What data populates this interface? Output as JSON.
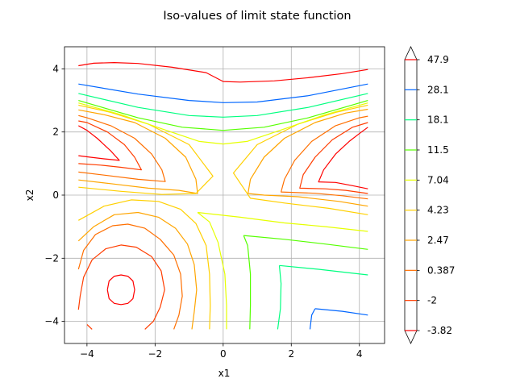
{
  "chart_data": {
    "type": "contour",
    "title": "Iso-values of limit state function",
    "xlabel": "x1",
    "ylabel": "x2",
    "xlim": [
      -4.66,
      4.74
    ],
    "ylim": [
      -4.7,
      4.7
    ],
    "xticks": [
      -4,
      -2,
      0,
      2,
      4
    ],
    "yticks": [
      -4,
      -2,
      0,
      2,
      4
    ],
    "xtick_labels": [
      "−4",
      "−2",
      "0",
      "2",
      "4"
    ],
    "ytick_labels": [
      "−4",
      "−2",
      "0",
      "2",
      "4"
    ],
    "grid": true,
    "colorbar": {
      "extend": "both",
      "levels": [
        {
          "label": "-3.82",
          "color": "#ff0000"
        },
        {
          "label": "-2",
          "color": "#ff3d00"
        },
        {
          "label": "0.387",
          "color": "#ff6f00"
        },
        {
          "label": "2.47",
          "color": "#ffa500"
        },
        {
          "label": "4.23",
          "color": "#ffd000"
        },
        {
          "label": "7.04",
          "color": "#e6ff00"
        },
        {
          "label": "11.5",
          "color": "#55ff00"
        },
        {
          "label": "18.1",
          "color": "#00ff80"
        },
        {
          "label": "28.1",
          "color": "#0066ff"
        },
        {
          "label": "47.9",
          "color": "#ff0000"
        }
      ]
    },
    "contours": [
      {
        "level": "-3.82",
        "color": "#ff0000",
        "paths": [
          [
            [
              -3.4,
              -3.0
            ],
            [
              -3.35,
              -2.72
            ],
            [
              -3.2,
              -2.57
            ],
            [
              -3.0,
              -2.53
            ],
            [
              -2.8,
              -2.57
            ],
            [
              -2.65,
              -2.72
            ],
            [
              -2.6,
              -3.0
            ],
            [
              -2.65,
              -3.28
            ],
            [
              -2.8,
              -3.43
            ],
            [
              -3.0,
              -3.47
            ],
            [
              -3.2,
              -3.43
            ],
            [
              -3.35,
              -3.28
            ],
            [
              -3.4,
              -3.0
            ]
          ],
          [
            [
              -4.25,
              1.25
            ],
            [
              -3.9,
              1.2
            ],
            [
              -3.5,
              1.15
            ],
            [
              -3.05,
              1.1
            ],
            [
              -3.3,
              1.4
            ],
            [
              -3.7,
              1.8
            ],
            [
              -4.0,
              2.05
            ],
            [
              -4.25,
              2.2
            ]
          ],
          [
            [
              4.25,
              0.2
            ],
            [
              3.8,
              0.3
            ],
            [
              3.3,
              0.4
            ],
            [
              2.8,
              0.42
            ],
            [
              2.95,
              0.8
            ],
            [
              3.3,
              1.3
            ],
            [
              3.7,
              1.7
            ],
            [
              4.0,
              1.95
            ],
            [
              4.25,
              2.15
            ]
          ],
          [
            [
              -4.25,
              4.1
            ],
            [
              -3.8,
              4.18
            ],
            [
              -3.2,
              4.2
            ],
            [
              -2.5,
              4.17
            ],
            [
              -1.5,
              4.05
            ],
            [
              -0.5,
              3.88
            ],
            [
              0.0,
              3.6
            ],
            [
              0.5,
              3.58
            ],
            [
              1.5,
              3.62
            ],
            [
              2.5,
              3.72
            ],
            [
              3.5,
              3.85
            ],
            [
              4.25,
              3.98
            ]
          ]
        ]
      },
      {
        "level": "-2",
        "color": "#ff3d00",
        "paths": [
          [
            [
              -4.25,
              -3.63
            ],
            [
              -4.2,
              -3.2
            ],
            [
              -4.1,
              -2.6
            ],
            [
              -3.85,
              -2.05
            ],
            [
              -3.45,
              -1.7
            ],
            [
              -3.0,
              -1.58
            ],
            [
              -2.55,
              -1.65
            ],
            [
              -2.1,
              -1.95
            ],
            [
              -1.82,
              -2.4
            ],
            [
              -1.72,
              -3.0
            ],
            [
              -1.85,
              -3.55
            ],
            [
              -2.05,
              -4.0
            ],
            [
              -2.3,
              -4.25
            ]
          ],
          [
            [
              -4.0,
              -4.1
            ],
            [
              -3.85,
              -4.25
            ]
          ],
          [
            [
              -4.25,
              1.0
            ],
            [
              -3.6,
              0.95
            ],
            [
              -3.0,
              0.88
            ],
            [
              -2.4,
              0.8
            ],
            [
              -2.6,
              1.2
            ],
            [
              -2.9,
              1.6
            ],
            [
              -3.4,
              2.0
            ],
            [
              -4.0,
              2.3
            ],
            [
              -4.25,
              2.35
            ]
          ],
          [
            [
              4.25,
              0.05
            ],
            [
              3.6,
              0.15
            ],
            [
              3.0,
              0.2
            ],
            [
              2.25,
              0.22
            ],
            [
              2.35,
              0.65
            ],
            [
              2.7,
              1.2
            ],
            [
              3.2,
              1.75
            ],
            [
              3.8,
              2.15
            ],
            [
              4.25,
              2.3
            ]
          ]
        ]
      },
      {
        "level": "0.387",
        "color": "#ff6f00",
        "paths": [
          [
            [
              -4.25,
              -2.35
            ],
            [
              -4.1,
              -1.75
            ],
            [
              -3.75,
              -1.25
            ],
            [
              -3.25,
              -0.97
            ],
            [
              -2.8,
              -0.92
            ],
            [
              -2.3,
              -1.05
            ],
            [
              -1.85,
              -1.4
            ],
            [
              -1.45,
              -1.9
            ],
            [
              -1.25,
              -2.5
            ],
            [
              -1.2,
              -3.2
            ],
            [
              -1.3,
              -3.8
            ],
            [
              -1.45,
              -4.25
            ]
          ],
          [
            [
              -4.25,
              0.73
            ],
            [
              -3.4,
              0.62
            ],
            [
              -2.5,
              0.5
            ],
            [
              -1.7,
              0.43
            ],
            [
              -1.8,
              0.8
            ],
            [
              -2.1,
              1.3
            ],
            [
              -2.6,
              1.8
            ],
            [
              -3.3,
              2.2
            ],
            [
              -4.0,
              2.45
            ],
            [
              -4.25,
              2.52
            ]
          ],
          [
            [
              4.25,
              -0.12
            ],
            [
              3.5,
              -0.02
            ],
            [
              2.7,
              0.06
            ],
            [
              1.7,
              0.1
            ],
            [
              1.8,
              0.5
            ],
            [
              2.1,
              1.1
            ],
            [
              2.6,
              1.7
            ],
            [
              3.3,
              2.2
            ],
            [
              4.0,
              2.45
            ],
            [
              4.25,
              2.5
            ]
          ]
        ]
      },
      {
        "level": "2.47",
        "color": "#ffa500",
        "paths": [
          [
            [
              -4.25,
              -1.45
            ],
            [
              -3.8,
              -1.0
            ],
            [
              -3.2,
              -0.62
            ],
            [
              -2.5,
              -0.55
            ],
            [
              -1.9,
              -0.7
            ],
            [
              -1.4,
              -1.05
            ],
            [
              -1.05,
              -1.55
            ],
            [
              -0.85,
              -2.2
            ],
            [
              -0.78,
              -3.0
            ],
            [
              -0.85,
              -3.7
            ],
            [
              -0.92,
              -4.25
            ]
          ],
          [
            [
              -4.25,
              0.48
            ],
            [
              -3.2,
              0.35
            ],
            [
              -2.2,
              0.22
            ],
            [
              -1.3,
              0.15
            ],
            [
              -0.75,
              0.05
            ],
            [
              -0.8,
              0.5
            ],
            [
              -1.1,
              1.2
            ],
            [
              -1.7,
              1.8
            ],
            [
              -2.6,
              2.3
            ],
            [
              -3.5,
              2.55
            ],
            [
              -4.25,
              2.7
            ]
          ],
          [
            [
              4.25,
              -0.35
            ],
            [
              3.4,
              -0.2
            ],
            [
              2.2,
              -0.05
            ],
            [
              1.2,
              0.0
            ],
            [
              0.73,
              0.05
            ],
            [
              0.8,
              0.5
            ],
            [
              1.2,
              1.2
            ],
            [
              1.8,
              1.8
            ],
            [
              2.7,
              2.3
            ],
            [
              3.6,
              2.6
            ],
            [
              4.25,
              2.72
            ]
          ]
        ]
      },
      {
        "level": "4.23",
        "color": "#ffd000",
        "paths": [
          [
            [
              -4.25,
              -0.8
            ],
            [
              -3.5,
              -0.35
            ],
            [
              -2.7,
              -0.15
            ],
            [
              -1.9,
              -0.2
            ],
            [
              -1.25,
              -0.45
            ],
            [
              -0.8,
              -0.9
            ],
            [
              -0.5,
              -1.6
            ],
            [
              -0.4,
              -2.5
            ],
            [
              -0.38,
              -3.5
            ],
            [
              -0.4,
              -4.25
            ]
          ],
          [
            [
              -4.25,
              0.25
            ],
            [
              -3.0,
              0.12
            ],
            [
              -1.8,
              0.02
            ],
            [
              -0.8,
              0.05
            ],
            [
              -0.3,
              0.6
            ],
            [
              -1.0,
              1.6
            ],
            [
              -2.2,
              2.25
            ],
            [
              -3.3,
              2.62
            ],
            [
              -4.25,
              2.85
            ]
          ],
          [
            [
              4.25,
              -0.62
            ],
            [
              3.1,
              -0.42
            ],
            [
              1.8,
              -0.25
            ],
            [
              0.8,
              -0.1
            ],
            [
              0.3,
              0.7
            ],
            [
              1.0,
              1.6
            ],
            [
              2.2,
              2.25
            ],
            [
              3.3,
              2.62
            ],
            [
              4.25,
              2.85
            ]
          ]
        ]
      },
      {
        "level": "7.04",
        "color": "#e6ff00",
        "paths": [
          [
            [
              -4.25,
              2.92
            ],
            [
              -3.0,
              2.55
            ],
            [
              -1.8,
              2.1
            ],
            [
              -0.7,
              1.7
            ],
            [
              0.0,
              1.62
            ],
            [
              0.7,
              1.7
            ],
            [
              1.8,
              2.1
            ],
            [
              3.0,
              2.55
            ],
            [
              4.25,
              2.92
            ]
          ],
          [
            [
              -0.75,
              -0.55
            ],
            [
              0.5,
              -0.7
            ],
            [
              1.8,
              -0.88
            ],
            [
              3.0,
              -1.0
            ],
            [
              4.25,
              -1.15
            ]
          ],
          [
            [
              -0.75,
              -0.55
            ],
            [
              -0.4,
              -0.85
            ],
            [
              -0.15,
              -1.5
            ],
            [
              0.05,
              -2.5
            ],
            [
              0.1,
              -3.5
            ],
            [
              0.1,
              -4.25
            ]
          ]
        ]
      },
      {
        "level": "11.5",
        "color": "#55ff00",
        "paths": [
          [
            [
              -4.25,
              3.0
            ],
            [
              -2.5,
              2.45
            ],
            [
              -1.2,
              2.15
            ],
            [
              0.0,
              2.05
            ],
            [
              1.2,
              2.15
            ],
            [
              2.5,
              2.45
            ],
            [
              4.25,
              3.0
            ]
          ],
          [
            [
              0.6,
              -1.28
            ],
            [
              1.8,
              -1.4
            ],
            [
              3.0,
              -1.55
            ],
            [
              4.25,
              -1.72
            ]
          ],
          [
            [
              0.6,
              -1.28
            ],
            [
              0.72,
              -1.6
            ],
            [
              0.8,
              -2.5
            ],
            [
              0.8,
              -3.5
            ],
            [
              0.78,
              -4.25
            ]
          ]
        ]
      },
      {
        "level": "18.1",
        "color": "#00ff80",
        "paths": [
          [
            [
              -4.25,
              3.22
            ],
            [
              -2.5,
              2.78
            ],
            [
              -1.0,
              2.52
            ],
            [
              0.0,
              2.47
            ],
            [
              1.0,
              2.52
            ],
            [
              2.5,
              2.78
            ],
            [
              4.25,
              3.22
            ]
          ],
          [
            [
              1.65,
              -2.23
            ],
            [
              2.8,
              -2.35
            ],
            [
              4.25,
              -2.53
            ]
          ],
          [
            [
              1.65,
              -2.23
            ],
            [
              1.7,
              -2.8
            ],
            [
              1.68,
              -3.6
            ],
            [
              1.6,
              -4.25
            ]
          ]
        ]
      },
      {
        "level": "28.1",
        "color": "#0066ff",
        "paths": [
          [
            [
              -4.25,
              3.52
            ],
            [
              -2.5,
              3.2
            ],
            [
              -1.0,
              3.0
            ],
            [
              0.0,
              2.93
            ],
            [
              1.0,
              2.95
            ],
            [
              2.5,
              3.15
            ],
            [
              4.25,
              3.52
            ]
          ],
          [
            [
              2.7,
              -3.6
            ],
            [
              3.5,
              -3.68
            ],
            [
              4.25,
              -3.8
            ]
          ],
          [
            [
              2.7,
              -3.6
            ],
            [
              2.6,
              -3.8
            ],
            [
              2.55,
              -4.25
            ]
          ]
        ]
      }
    ]
  }
}
